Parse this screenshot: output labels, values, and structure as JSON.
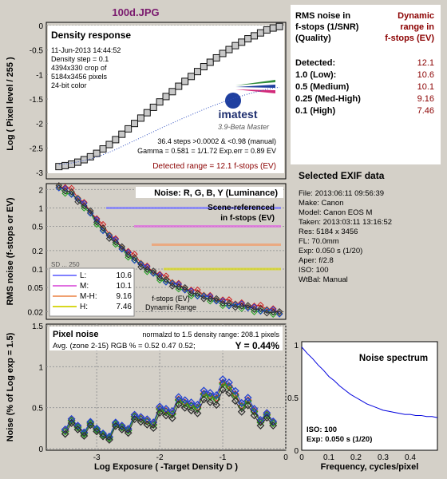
{
  "window": {
    "title": "100d.JPG"
  },
  "colors": {
    "title": "#7a1a6e",
    "maroon": "#8b0000",
    "panel_bg": "#ffffff",
    "plot_bg": "#d4d0c8"
  },
  "density_panel": {
    "box_title": "Density response",
    "info_lines": [
      "11-Jun-2013 14:44:52",
      "Density step = 0.1",
      "4394x330 crop of",
      "5184x3456 pixels",
      "24-bit color"
    ],
    "logo": "imatest",
    "version": "3.9-Beta  Master",
    "stats_lines": [
      "36.4 steps >0.0002 & <0.98 (manual)",
      "Gamma = 0.581 = 1/1.72  Exp.err = 0.89 EV"
    ],
    "detected": "Detected range = 12.1 f-stops (EV)",
    "ylabel": "Log ( Pixel level / 255 )",
    "yticks": [
      "0",
      "-0.5",
      "-1",
      "-1.5",
      "-2",
      "-2.5",
      "-3"
    ]
  },
  "noise_panel": {
    "box_title": "Noise: R, G, B, Y (Luminance)",
    "scene_ref": [
      "Scene-referenced",
      "in f-stops (EV)"
    ],
    "ylabel": "RMS noise (f-stops or EV)",
    "yticks": [
      "2",
      "1",
      "0.5",
      "0.2",
      "0.1",
      "0.05",
      "0.02"
    ],
    "hidden_label": "SD ... 250",
    "legend": [
      {
        "label": "L:",
        "value": "10.6",
        "color": "#8080ff"
      },
      {
        "label": "M:",
        "value": "10.1",
        "color": "#e070e0"
      },
      {
        "label": "M-H:",
        "value": "9.16",
        "color": "#f0a070"
      },
      {
        "label": "H:",
        "value": "7.46",
        "color": "#d8d820"
      }
    ],
    "dr_note": [
      "f-stops (EV)",
      "Dynamic Range"
    ]
  },
  "pixel_panel": {
    "box_title": "Pixel noise",
    "normalized": "normalzd to 1.5 density range: 208.1 pixels",
    "avg": "Avg. (zone 2-15) RGB % = 0.52  0.47  0.52;",
    "y_value": "Y = 0.44%",
    "ylabel": "Noise (% of Log exp = 1.5)",
    "xlabel": "Log Exposure ( -Target Density D )",
    "yticks": [
      "1.5",
      "1",
      "0.5",
      "0"
    ],
    "xticks": [
      "-3",
      "-2",
      "-1",
      "0"
    ]
  },
  "right_table": {
    "header_left": [
      "RMS noise in",
      "f-stops (1/SNR)",
      "(Quality)"
    ],
    "header_right": [
      "Dynamic",
      "range in",
      "f-stops (EV)"
    ],
    "rows": [
      {
        "label": "Detected:",
        "value": "12.1"
      },
      {
        "label": "1.0  (Low):",
        "value": "10.6"
      },
      {
        "label": "0.5  (Medium)",
        "value": "10.1"
      },
      {
        "label": "0.25 (Med-High)",
        "value": "9.16"
      },
      {
        "label": "0.1  (High)",
        "value": "7.46"
      }
    ]
  },
  "exif": {
    "title": "Selected EXIF data",
    "lines": [
      "File:  2013:06:11 09:56:39",
      "Make:  Canon",
      "Model: Canon EOS M",
      "Taken:  2013:03:11 13:16:52",
      "Res:   5184 x 3456",
      "FL:  70.0mm",
      "Exp:  0.050 s  (1/20)",
      "Aper:  f/2.8",
      "ISO:  100",
      "WtBal: Manual"
    ]
  },
  "spectrum": {
    "title": "Noise spectrum",
    "iso": "ISO:   100",
    "exp": "Exp:   0.050 s  (1/20)",
    "xlabel": "Frequency, cycles/pixel",
    "yticks": [
      "1",
      "0.5",
      "0"
    ],
    "xticks": [
      "0",
      "0.1",
      "0.2",
      "0.3",
      "0.4"
    ]
  },
  "chart_data": [
    {
      "type": "scatter",
      "title": "Density response",
      "ylabel": "Log ( Pixel level / 255 )",
      "xlim": [
        -3.8,
        0
      ],
      "ylim": [
        -3,
        0
      ],
      "series": [
        {
          "name": "",
          "x": [
            -3.6,
            -3.5,
            -3.4,
            -3.3,
            -3.2,
            -3.1,
            -3.0,
            -2.9,
            -2.8,
            -2.7,
            -2.6,
            -2.5,
            -2.4,
            -2.3,
            -2.2,
            -2.1,
            -2.0,
            -1.9,
            -1.8,
            -1.7,
            -1.6,
            -1.5,
            -1.4,
            -1.3,
            -1.2,
            -1.1,
            -1.0,
            -0.9,
            -0.8,
            -0.7,
            -0.6,
            -0.5,
            -0.4,
            -0.3,
            -0.2,
            -0.1
          ],
          "y": [
            -2.88,
            -2.86,
            -2.83,
            -2.79,
            -2.74,
            -2.68,
            -2.61,
            -2.52,
            -2.43,
            -2.33,
            -2.22,
            -2.11,
            -2.0,
            -1.89,
            -1.78,
            -1.67,
            -1.56,
            -1.45,
            -1.35,
            -1.24,
            -1.14,
            -1.04,
            -0.94,
            -0.84,
            -0.75,
            -0.66,
            -0.57,
            -0.49,
            -0.41,
            -0.34,
            -0.27,
            -0.21,
            -0.15,
            -0.09,
            -0.05,
            -0.02
          ]
        }
      ]
    },
    {
      "type": "line",
      "title": "Noise: R, G, B, Y (Luminance)",
      "ylabel": "RMS noise (f-stops or EV)",
      "yscale": "log",
      "xlim": [
        -3.8,
        0
      ],
      "ylim": [
        0.015,
        2.5
      ],
      "reference_lines": [
        {
          "name": "L",
          "value": 1.0
        },
        {
          "name": "M",
          "value": 0.5
        },
        {
          "name": "M-H",
          "value": 0.25
        },
        {
          "name": "H",
          "value": 0.1
        }
      ],
      "series": [
        {
          "name": "Y",
          "x": [
            -3.6,
            -3.5,
            -3.4,
            -3.3,
            -3.2,
            -3.1,
            -3.0,
            -2.9,
            -2.8,
            -2.7,
            -2.6,
            -2.5,
            -2.4,
            -2.3,
            -2.2,
            -2.1,
            -2.0,
            -1.9,
            -1.8,
            -1.7,
            -1.6,
            -1.5,
            -1.4,
            -1.3,
            -1.2,
            -1.1,
            -1.0,
            -0.9,
            -0.8,
            -0.7,
            -0.6,
            -0.5,
            -0.4,
            -0.3,
            -0.2,
            -0.1
          ],
          "y": [
            2.2,
            2.0,
            1.8,
            1.4,
            1.1,
            0.85,
            0.62,
            0.46,
            0.35,
            0.28,
            0.22,
            0.18,
            0.15,
            0.12,
            0.1,
            0.088,
            0.076,
            0.066,
            0.058,
            0.052,
            0.047,
            0.042,
            0.039,
            0.036,
            0.033,
            0.031,
            0.029,
            0.027,
            0.026,
            0.025,
            0.024,
            0.023,
            0.022,
            0.021,
            0.02,
            0.019
          ]
        }
      ]
    },
    {
      "type": "scatter",
      "title": "Pixel noise",
      "xlabel": "Log Exposure ( -Target Density D )",
      "ylabel": "Noise (% of Log exp = 1.5)",
      "xlim": [
        -3.8,
        0
      ],
      "ylim": [
        0,
        1.5
      ],
      "series": [
        {
          "name": "Y",
          "x": [
            -3.5,
            -3.4,
            -3.3,
            -3.2,
            -3.1,
            -3.0,
            -2.9,
            -2.8,
            -2.7,
            -2.6,
            -2.5,
            -2.4,
            -2.3,
            -2.2,
            -2.1,
            -2.0,
            -1.9,
            -1.8,
            -1.7,
            -1.6,
            -1.5,
            -1.4,
            -1.3,
            -1.2,
            -1.1,
            -1.0,
            -0.9,
            -0.8,
            -0.7,
            -0.6,
            -0.5,
            -0.4,
            -0.3,
            -0.2
          ],
          "y": [
            0.3,
            0.28,
            0.26,
            0.24,
            0.22,
            0.2,
            0.2,
            0.22,
            0.24,
            0.26,
            0.28,
            0.3,
            0.33,
            0.36,
            0.38,
            0.42,
            0.45,
            0.48,
            0.5,
            0.52,
            0.55,
            0.58,
            0.6,
            0.63,
            0.66,
            0.7,
            0.72,
            0.68,
            0.6,
            0.52,
            0.45,
            0.38,
            0.32,
            0.28
          ]
        }
      ]
    },
    {
      "type": "line",
      "title": "Noise spectrum",
      "xlabel": "Frequency, cycles/pixel",
      "xlim": [
        0,
        0.5
      ],
      "ylim": [
        0,
        1
      ],
      "series": [
        {
          "name": "",
          "x": [
            0,
            0.02,
            0.04,
            0.06,
            0.08,
            0.1,
            0.12,
            0.14,
            0.16,
            0.18,
            0.2,
            0.22,
            0.24,
            0.26,
            0.28,
            0.3,
            0.32,
            0.34,
            0.36,
            0.38,
            0.4,
            0.42,
            0.44,
            0.46,
            0.48,
            0.5
          ],
          "y": [
            0.98,
            0.92,
            0.87,
            0.81,
            0.76,
            0.7,
            0.66,
            0.61,
            0.57,
            0.53,
            0.5,
            0.47,
            0.44,
            0.42,
            0.4,
            0.38,
            0.37,
            0.36,
            0.35,
            0.34,
            0.34,
            0.33,
            0.33,
            0.32,
            0.32,
            0.31
          ]
        }
      ]
    }
  ]
}
